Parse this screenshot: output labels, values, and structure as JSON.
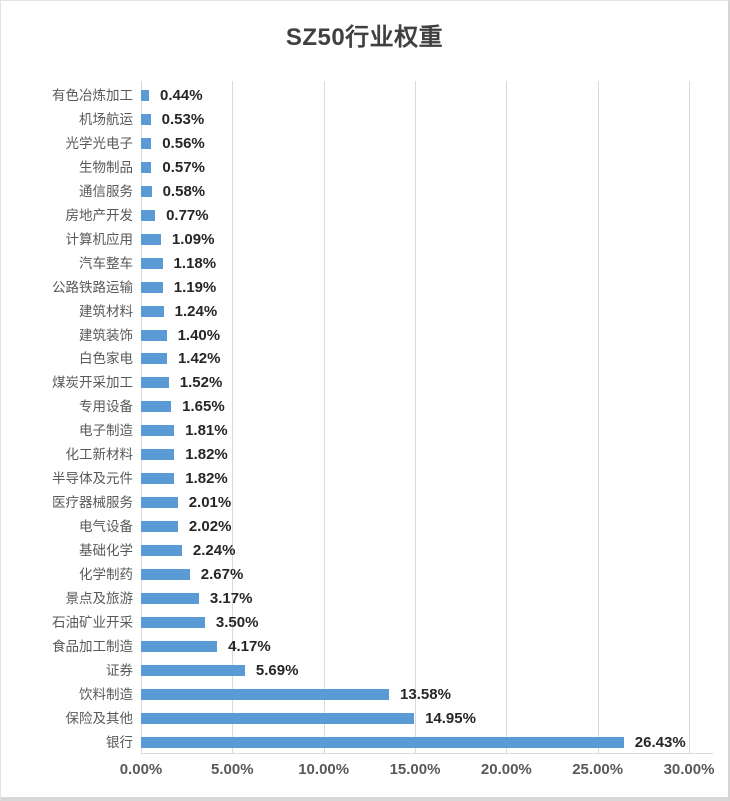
{
  "chart_data": {
    "type": "bar",
    "orientation": "horizontal",
    "title": "SZ50行业权重",
    "categories": [
      "有色冶炼加工",
      "机场航运",
      "光学光电子",
      "生物制品",
      "通信服务",
      "房地产开发",
      "计算机应用",
      "汽车整车",
      "公路铁路运输",
      "建筑材料",
      "建筑装饰",
      "白色家电",
      "煤炭开采加工",
      "专用设备",
      "电子制造",
      "化工新材料",
      "半导体及元件",
      "医疗器械服务",
      "电气设备",
      "基础化学",
      "化学制药",
      "景点及旅游",
      "石油矿业开采",
      "食品加工制造",
      "证券",
      "饮料制造",
      "保险及其他",
      "银行"
    ],
    "values": [
      0.44,
      0.53,
      0.56,
      0.57,
      0.58,
      0.77,
      1.09,
      1.18,
      1.19,
      1.24,
      1.4,
      1.42,
      1.52,
      1.65,
      1.81,
      1.82,
      1.82,
      2.01,
      2.02,
      2.24,
      2.67,
      3.17,
      3.5,
      4.17,
      5.69,
      13.58,
      14.95,
      26.43
    ],
    "value_labels": [
      "0.44%",
      "0.53%",
      "0.56%",
      "0.57%",
      "0.58%",
      "0.77%",
      "1.09%",
      "1.18%",
      "1.19%",
      "1.24%",
      "1.40%",
      "1.42%",
      "1.52%",
      "1.65%",
      "1.81%",
      "1.82%",
      "1.82%",
      "2.01%",
      "2.02%",
      "2.24%",
      "2.67%",
      "3.17%",
      "3.50%",
      "4.17%",
      "5.69%",
      "13.58%",
      "14.95%",
      "26.43%"
    ],
    "x_ticks": [
      "0.00%",
      "5.00%",
      "10.00%",
      "15.00%",
      "20.00%",
      "25.00%",
      "30.00%"
    ],
    "xlim": [
      0,
      30
    ],
    "grid": true,
    "legend": "none",
    "bar_color": "#5B9BD5",
    "colors": {
      "title": "#404040",
      "category_label": "#595959",
      "value_label": "#262626",
      "tick_label": "#595959",
      "gridline": "#D9D9D9"
    }
  }
}
